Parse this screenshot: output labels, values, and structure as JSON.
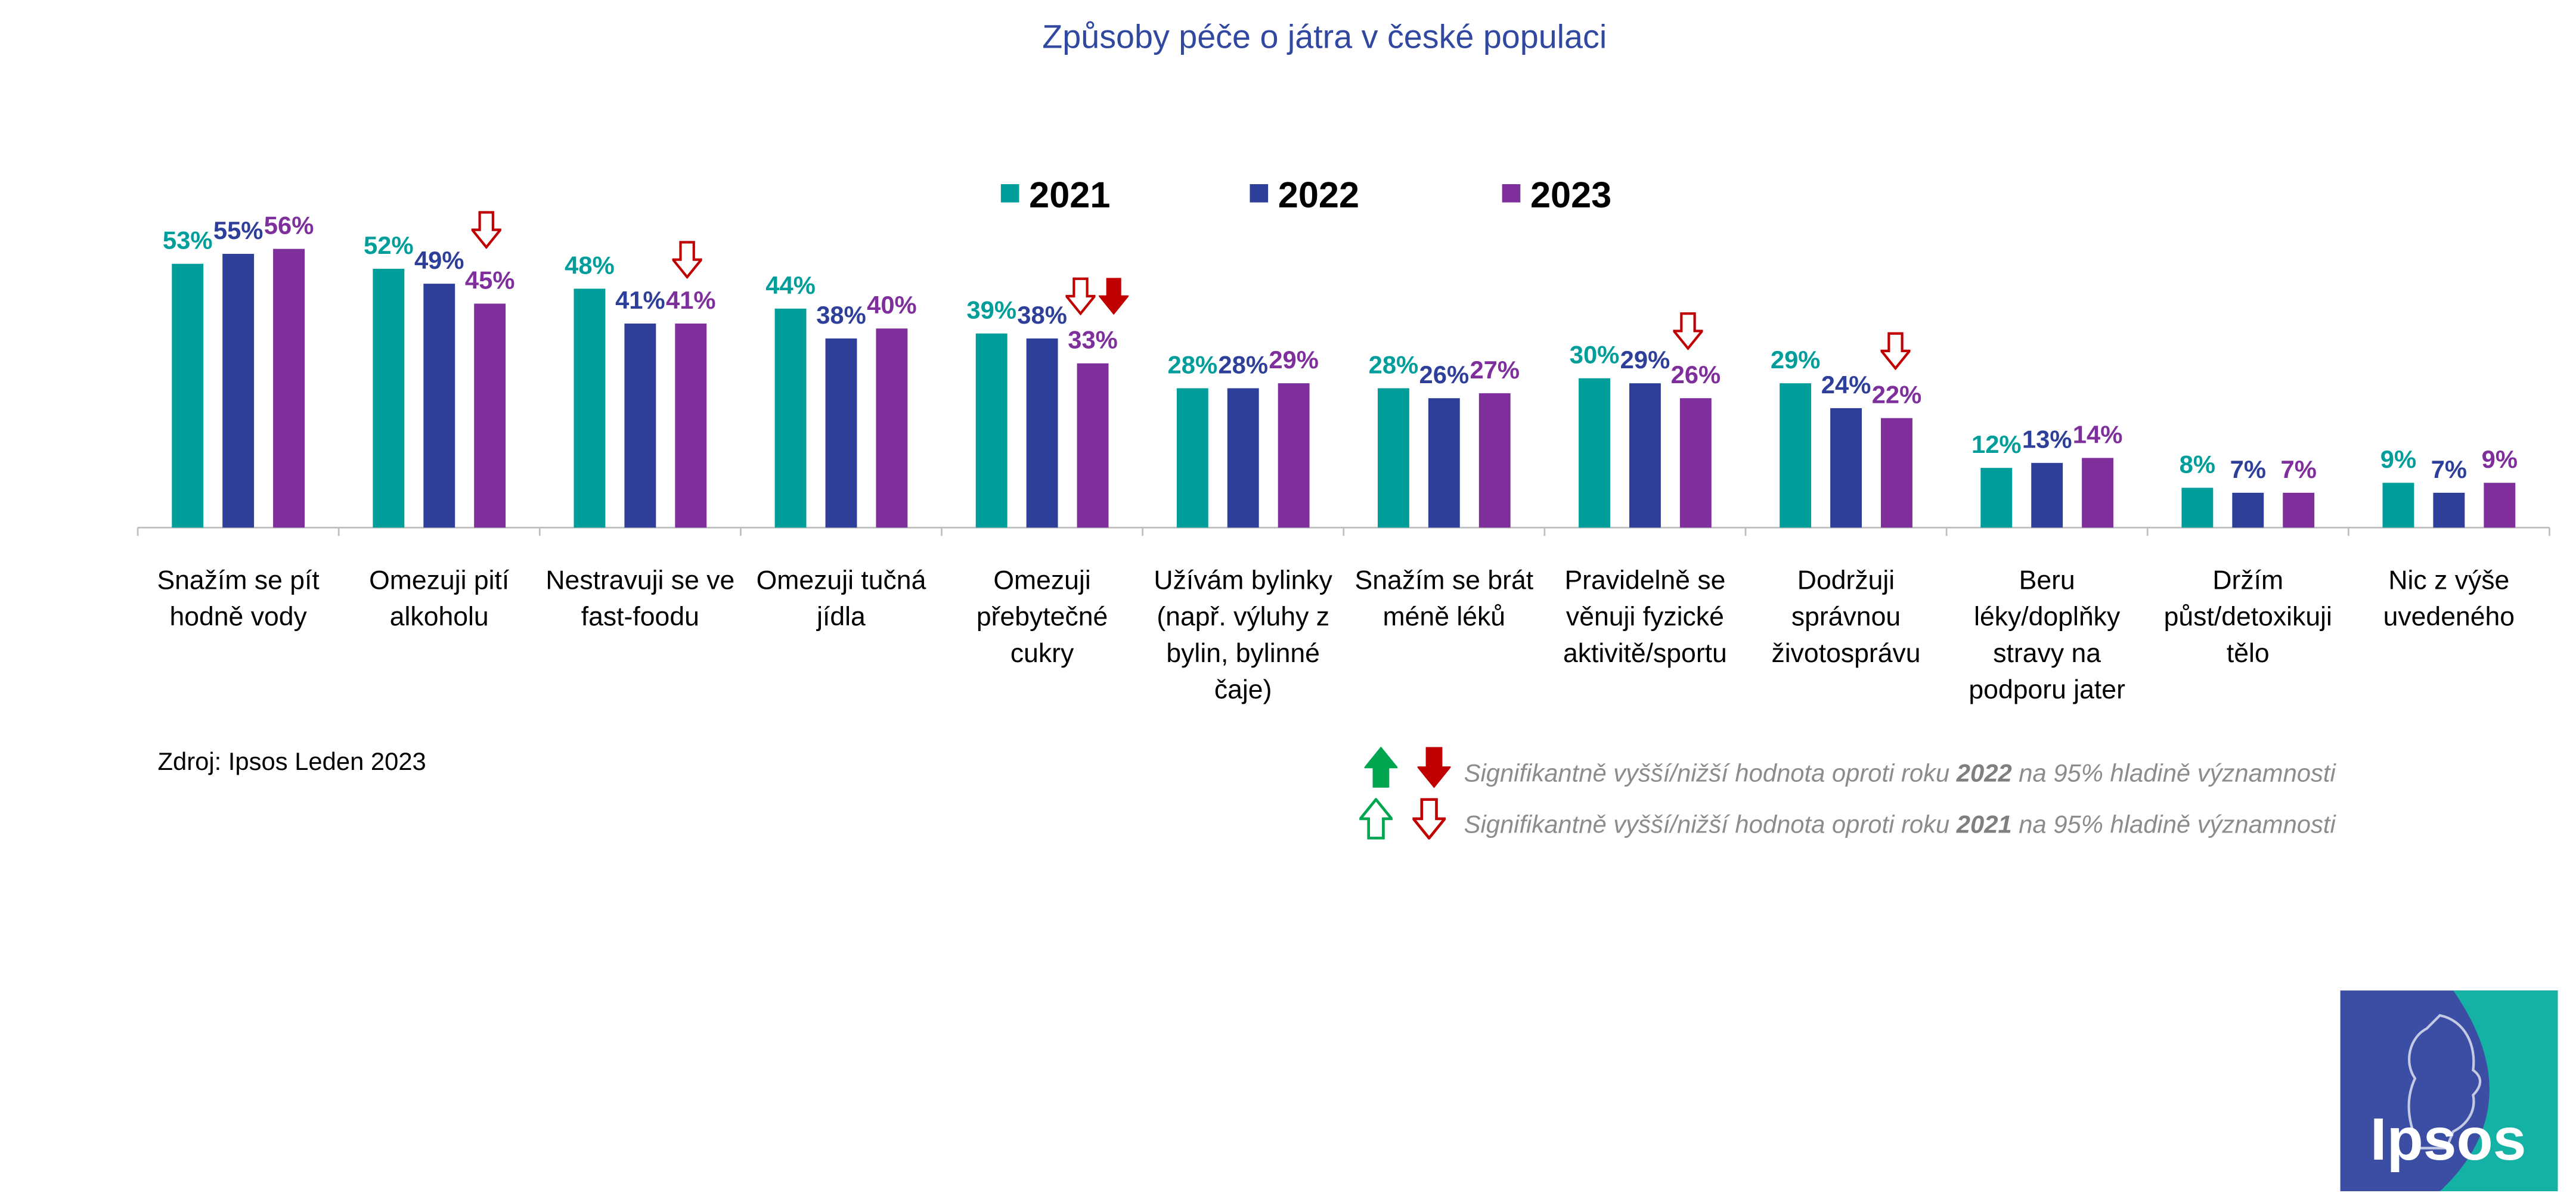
{
  "chart_data": {
    "type": "bar",
    "title": "Způsoby péče o játra v české populaci",
    "categories": [
      "Snažím se pít hodně vody",
      "Omezuji pití alkoholu",
      "Nestravuji se ve fast-foodu",
      "Omezuji tučná jídla",
      "Omezuji přebytečné cukry",
      "Užívám bylinky (např. výluhy z bylin, bylinné čaje)",
      "Snažím se brát méně léků",
      "Pravidelně se věnuji fyzické aktivitě/sportu",
      "Dodržuji správnou životosprávu",
      "Beru léky/doplňky stravy na podporu jater",
      "Držím půst/detoxikuji tělo",
      "Nic z výše uvedeného"
    ],
    "series": [
      {
        "name": "2021",
        "color": "#009e9a",
        "values": [
          53,
          52,
          48,
          44,
          39,
          28,
          28,
          30,
          29,
          12,
          8,
          9
        ],
        "value_labels": [
          "53%",
          "52%",
          "48%",
          "44%",
          "39%",
          "28%",
          "28%",
          "30%",
          "29%",
          "12%",
          "8%",
          "9%"
        ]
      },
      {
        "name": "2022",
        "color": "#2e3f9a",
        "values": [
          55,
          49,
          41,
          38,
          38,
          28,
          26,
          29,
          24,
          13,
          7,
          7
        ],
        "value_labels": [
          "55%",
          "49%",
          "41%",
          "38%",
          "38%",
          "28%",
          "26%",
          "29%",
          "24%",
          "13%",
          "7%",
          "7%"
        ]
      },
      {
        "name": "2023",
        "color": "#7e2f9c",
        "values": [
          56,
          45,
          41,
          40,
          33,
          29,
          27,
          26,
          22,
          14,
          7,
          9
        ],
        "value_labels": [
          "56%",
          "45%",
          "41%",
          "40%",
          "33%",
          "29%",
          "27%",
          "26%",
          "22%",
          "14%",
          "7%",
          "9%"
        ]
      }
    ]
  },
  "source": "Zdroj: Ipsos Leden 2023",
  "significance_notes": [
    {
      "before": "Signifikantně vyšší/nižší hodnota oproti roku ",
      "year": "2022",
      "after": " na 95% hladině významnosti"
    },
    {
      "before": "Signifikantně vyšší/nižší hodnota oproti roku ",
      "year": "2021",
      "after": " na 95% hladině významnosti"
    }
  ],
  "logo": "Ipsos"
}
